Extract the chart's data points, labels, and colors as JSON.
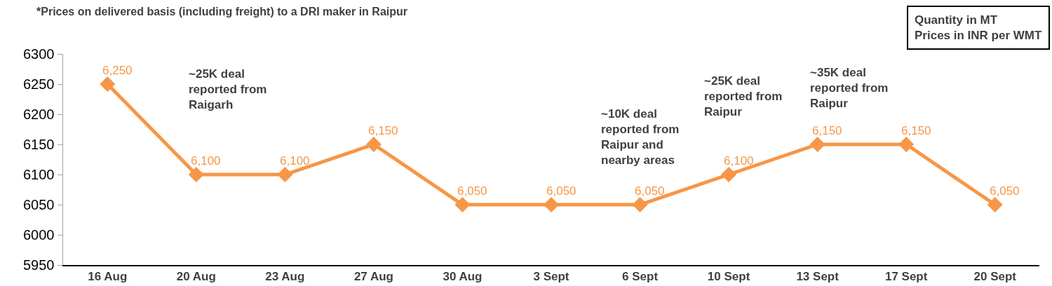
{
  "chart_data": {
    "type": "line",
    "categories": [
      "16 Aug",
      "20 Aug",
      "23 Aug",
      "27 Aug",
      "30 Aug",
      "3 Sept",
      "6 Sept",
      "10 Sept",
      "13 Sept",
      "17 Sept",
      "20 Sept"
    ],
    "series": [
      {
        "color": "#f79646",
        "values": [
          6250,
          6100,
          6100,
          6150,
          6050,
          6050,
          6050,
          6100,
          6150,
          6150,
          6050
        ]
      }
    ],
    "value_labels": [
      "6,250",
      "6,100",
      "6,100",
      "6,150",
      "6,050",
      "6,050",
      "6,050",
      "6,100",
      "6,150",
      "6,150",
      "6,050"
    ],
    "ylim": [
      5950,
      6300
    ],
    "yticks": [
      5950,
      6000,
      6050,
      6100,
      6150,
      6200,
      6250,
      6300
    ],
    "grid": false,
    "marker": "diamond",
    "line_style": "solid",
    "annotations": [
      "*Prices on delivered basis (including freight) to a DRI maker in Raipur",
      "Quantity in MT\nPrices in INR per WMT",
      "~25K deal reported from Raigarh",
      "~10K deal reported from Raipur and nearby areas",
      "~25K deal reported from Raipur",
      "~35K deal reported from Raipur"
    ]
  }
}
